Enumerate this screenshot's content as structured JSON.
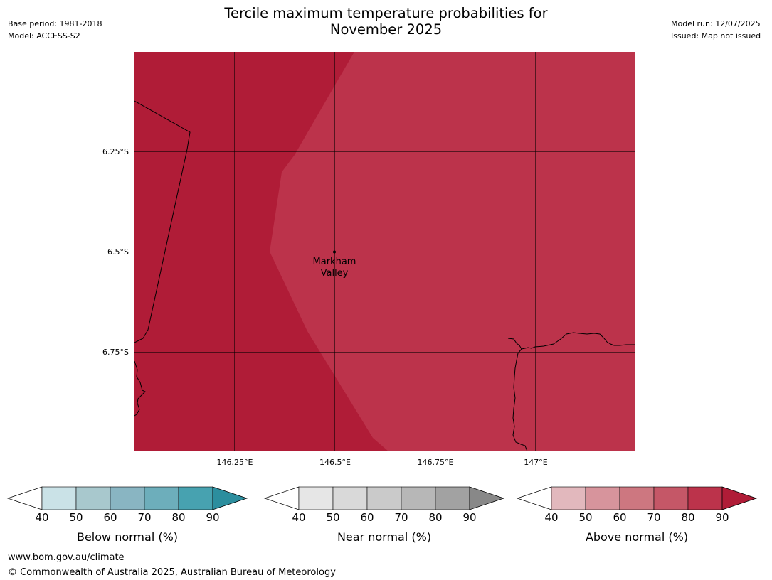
{
  "header": {
    "title_line1": "Tercile maximum temperature probabilities for",
    "title_line2": "November 2025",
    "base_period": "Base period: 1981-2018",
    "model": "Model: ACCESS-S2",
    "model_run": "Model run: 12/07/2025",
    "issued": "Issued: Map not issued"
  },
  "map": {
    "location_label_line1": "Markham",
    "location_label_line2": "Valley",
    "lat_labels": [
      "6.25°S",
      "6.5°S",
      "6.75°S"
    ],
    "lon_labels": [
      "146.25°E",
      "146.5°E",
      "146.75°E",
      "147°E"
    ],
    "regions": [
      {
        "category": "above-normal",
        "range": "80-90",
        "color": "#b01c37"
      },
      {
        "category": "above-normal",
        "range": "70-80",
        "color": "#bc334b"
      }
    ]
  },
  "colorbars": [
    {
      "label": "Below normal (%)",
      "ticks": [
        "40",
        "50",
        "60",
        "70",
        "80",
        "90"
      ],
      "colors": [
        "#cae2e7",
        "#a8c8cd",
        "#89b5c2",
        "#6daebb",
        "#47a2b0",
        "#2c8e9e"
      ]
    },
    {
      "label": "Near normal (%)",
      "ticks": [
        "40",
        "50",
        "60",
        "70",
        "80",
        "90"
      ],
      "colors": [
        "#e6e6e6",
        "#d9d9d9",
        "#cacaca",
        "#b7b7b7",
        "#a2a2a2",
        "#888888"
      ]
    },
    {
      "label": "Above normal (%)",
      "ticks": [
        "40",
        "50",
        "60",
        "70",
        "80",
        "90"
      ],
      "colors": [
        "#e2b8bd",
        "#d7949c",
        "#cd7780",
        "#c55767",
        "#bc334b",
        "#b01c37"
      ]
    }
  ],
  "footer": {
    "url": "www.bom.gov.au/climate",
    "copyright": "© Commonwealth of Australia 2025, Australian Bureau of Meteorology"
  }
}
